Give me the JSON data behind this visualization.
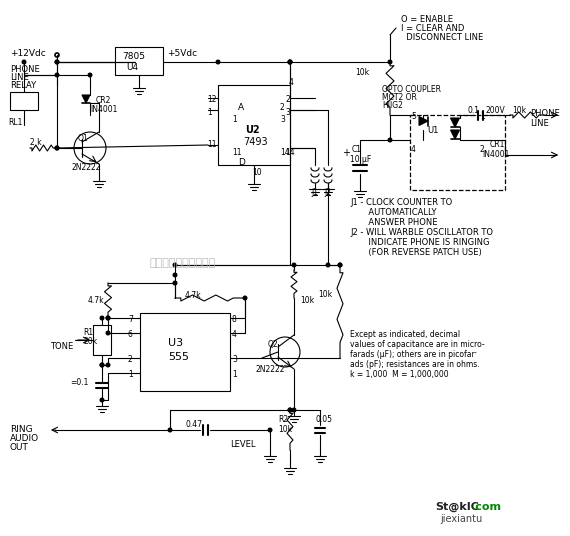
{
  "bg_color": "#ffffff",
  "fig_width": 5.7,
  "fig_height": 5.36,
  "dpi": 100,
  "watermark": "杭州将睜科技有限公司",
  "watermark_color": "#bbbbbb",
  "logo_main": "St@kIC",
  "logo_com": ".com",
  "logo_sub": "jiexiantu",
  "logo_color_main": "#222222",
  "logo_color_com": "#008800",
  "logo_color_sub": "#444444"
}
